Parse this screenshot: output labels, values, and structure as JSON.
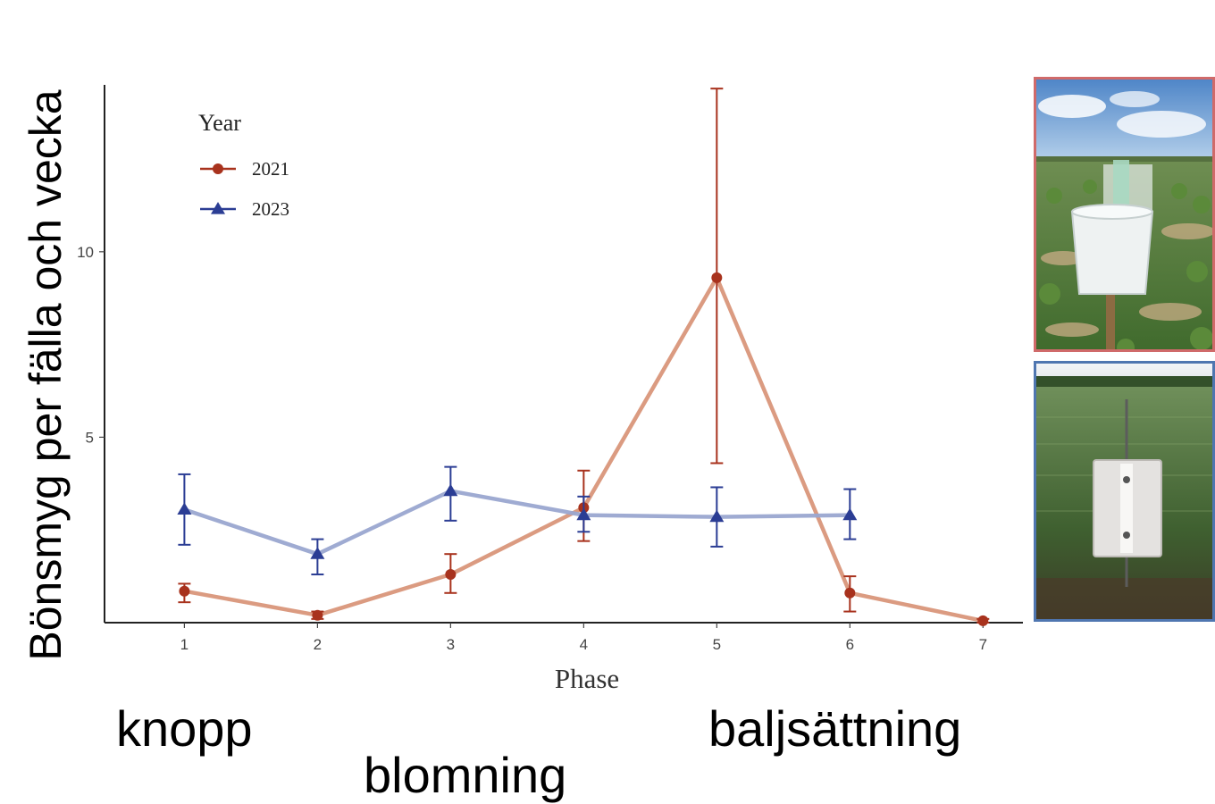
{
  "chart_data": {
    "type": "line",
    "ylabel": "Bönsmyg per fälla och vecka",
    "xlabel": "Phase",
    "x": [
      1,
      2,
      3,
      4,
      5,
      6,
      7
    ],
    "xlim": [
      0.4,
      7.3
    ],
    "ylim": [
      0,
      14.5
    ],
    "yticks": [
      5,
      10
    ],
    "grid": false,
    "legend": {
      "title": "Year",
      "position": "top-left"
    },
    "series": [
      {
        "name": "2021",
        "color": "#a8321d",
        "line_color": "#d9967a",
        "marker": "circle",
        "x": [
          1,
          2,
          3,
          4,
          5,
          6,
          7
        ],
        "values": [
          0.85,
          0.2,
          1.3,
          3.1,
          9.3,
          0.8,
          0.05
        ],
        "error_low": [
          0.55,
          0.1,
          0.8,
          2.2,
          4.3,
          0.3,
          0.0
        ],
        "error_high": [
          1.05,
          0.3,
          1.85,
          4.1,
          14.4,
          1.25,
          0.1
        ]
      },
      {
        "name": "2023",
        "color": "#2b3d94",
        "line_color": "#9aa6d0",
        "marker": "triangle",
        "x": [
          1,
          2,
          3,
          4,
          5,
          6
        ],
        "values": [
          3.05,
          1.85,
          3.55,
          2.9,
          2.85,
          2.9
        ],
        "error_low": [
          2.1,
          1.3,
          2.75,
          2.45,
          2.05,
          2.25
        ],
        "error_high": [
          4.0,
          2.25,
          4.2,
          3.4,
          3.65,
          3.6
        ]
      }
    ]
  },
  "stage_labels": {
    "bud": "knopp",
    "flowering": "blomning",
    "pod_setting": "baljsättning"
  },
  "photos": [
    {
      "name": "bucket-trap-photo",
      "border_color": "#d06a6a"
    },
    {
      "name": "sticky-trap-photo",
      "border_color": "#4f76b0"
    }
  ]
}
